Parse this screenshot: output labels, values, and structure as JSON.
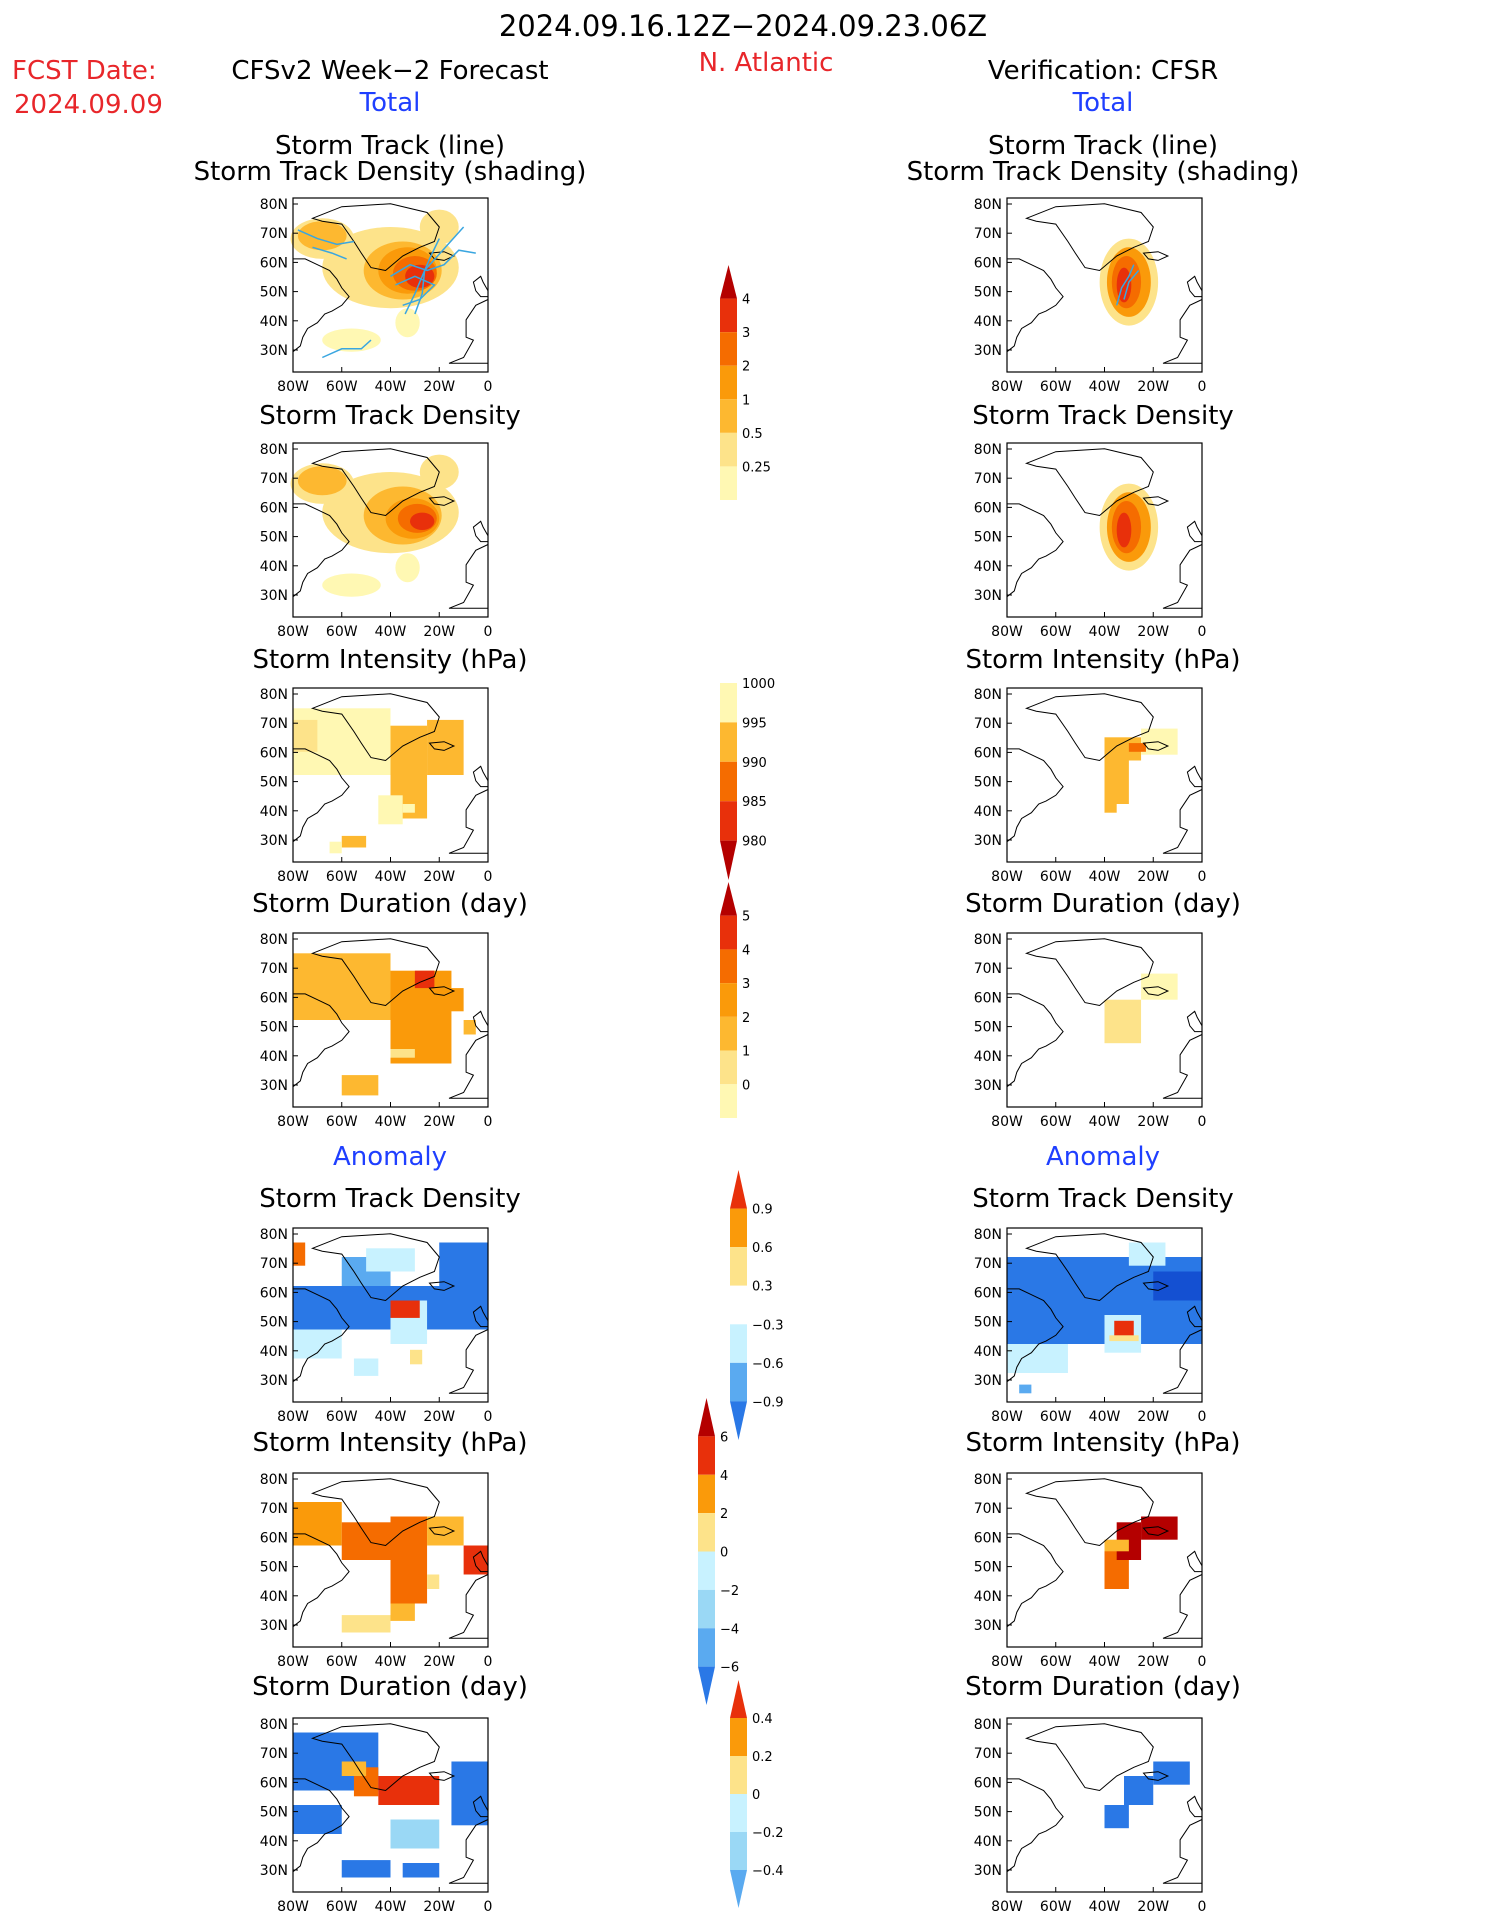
{
  "header": {
    "period": "2024.09.16.12Z−2024.09.23.06Z",
    "fcst_label": "FCST Date:",
    "fcst_date": "2024.09.09",
    "left_title": "CFSv2 Week−2 Forecast",
    "left_total": "Total",
    "region": "N. Atlantic",
    "right_title": "Verification: CFSR",
    "right_total": "Total"
  },
  "section_titles": {
    "track_line": "Storm Track (line)",
    "track_density_shading": "Storm Track Density (shading)",
    "track_density": "Storm Track Density",
    "intensity": "Storm Intensity (hPa)",
    "duration": "Storm Duration (day)",
    "anomaly": "Anomaly"
  },
  "map_axes": {
    "lat_ticks": [
      "80N",
      "70N",
      "60N",
      "50N",
      "40N",
      "30N"
    ],
    "lon_ticks": [
      "80W",
      "60W",
      "40W",
      "20W",
      "0"
    ]
  },
  "colorbars": {
    "density_total": [
      "0.25",
      "0.5",
      "1",
      "2",
      "3",
      "4"
    ],
    "intensity_total": [
      "1000",
      "995",
      "990",
      "985",
      "980"
    ],
    "duration_total": [
      "0",
      "1",
      "2",
      "3",
      "4",
      "5"
    ],
    "density_anom": [
      "0.9",
      "0.6",
      "0.3",
      "−0.3",
      "−0.6",
      "−0.9"
    ],
    "intensity_anom": [
      "6",
      "4",
      "2",
      "0",
      "−2",
      "−4",
      "−6"
    ],
    "duration_anom": [
      "0.4",
      "0.2",
      "0",
      "−0.2",
      "−0.4"
    ]
  },
  "colors": {
    "warm": [
      "#fff8b3",
      "#fde38a",
      "#fdb830",
      "#fa9a0a",
      "#f56c00",
      "#e8300b",
      "#b40000"
    ],
    "cool": [
      "#c8f2ff",
      "#9ad8f5",
      "#5aaaf0",
      "#2a78e6",
      "#1450d2"
    ],
    "track_line": "#3aa6e0"
  }
}
